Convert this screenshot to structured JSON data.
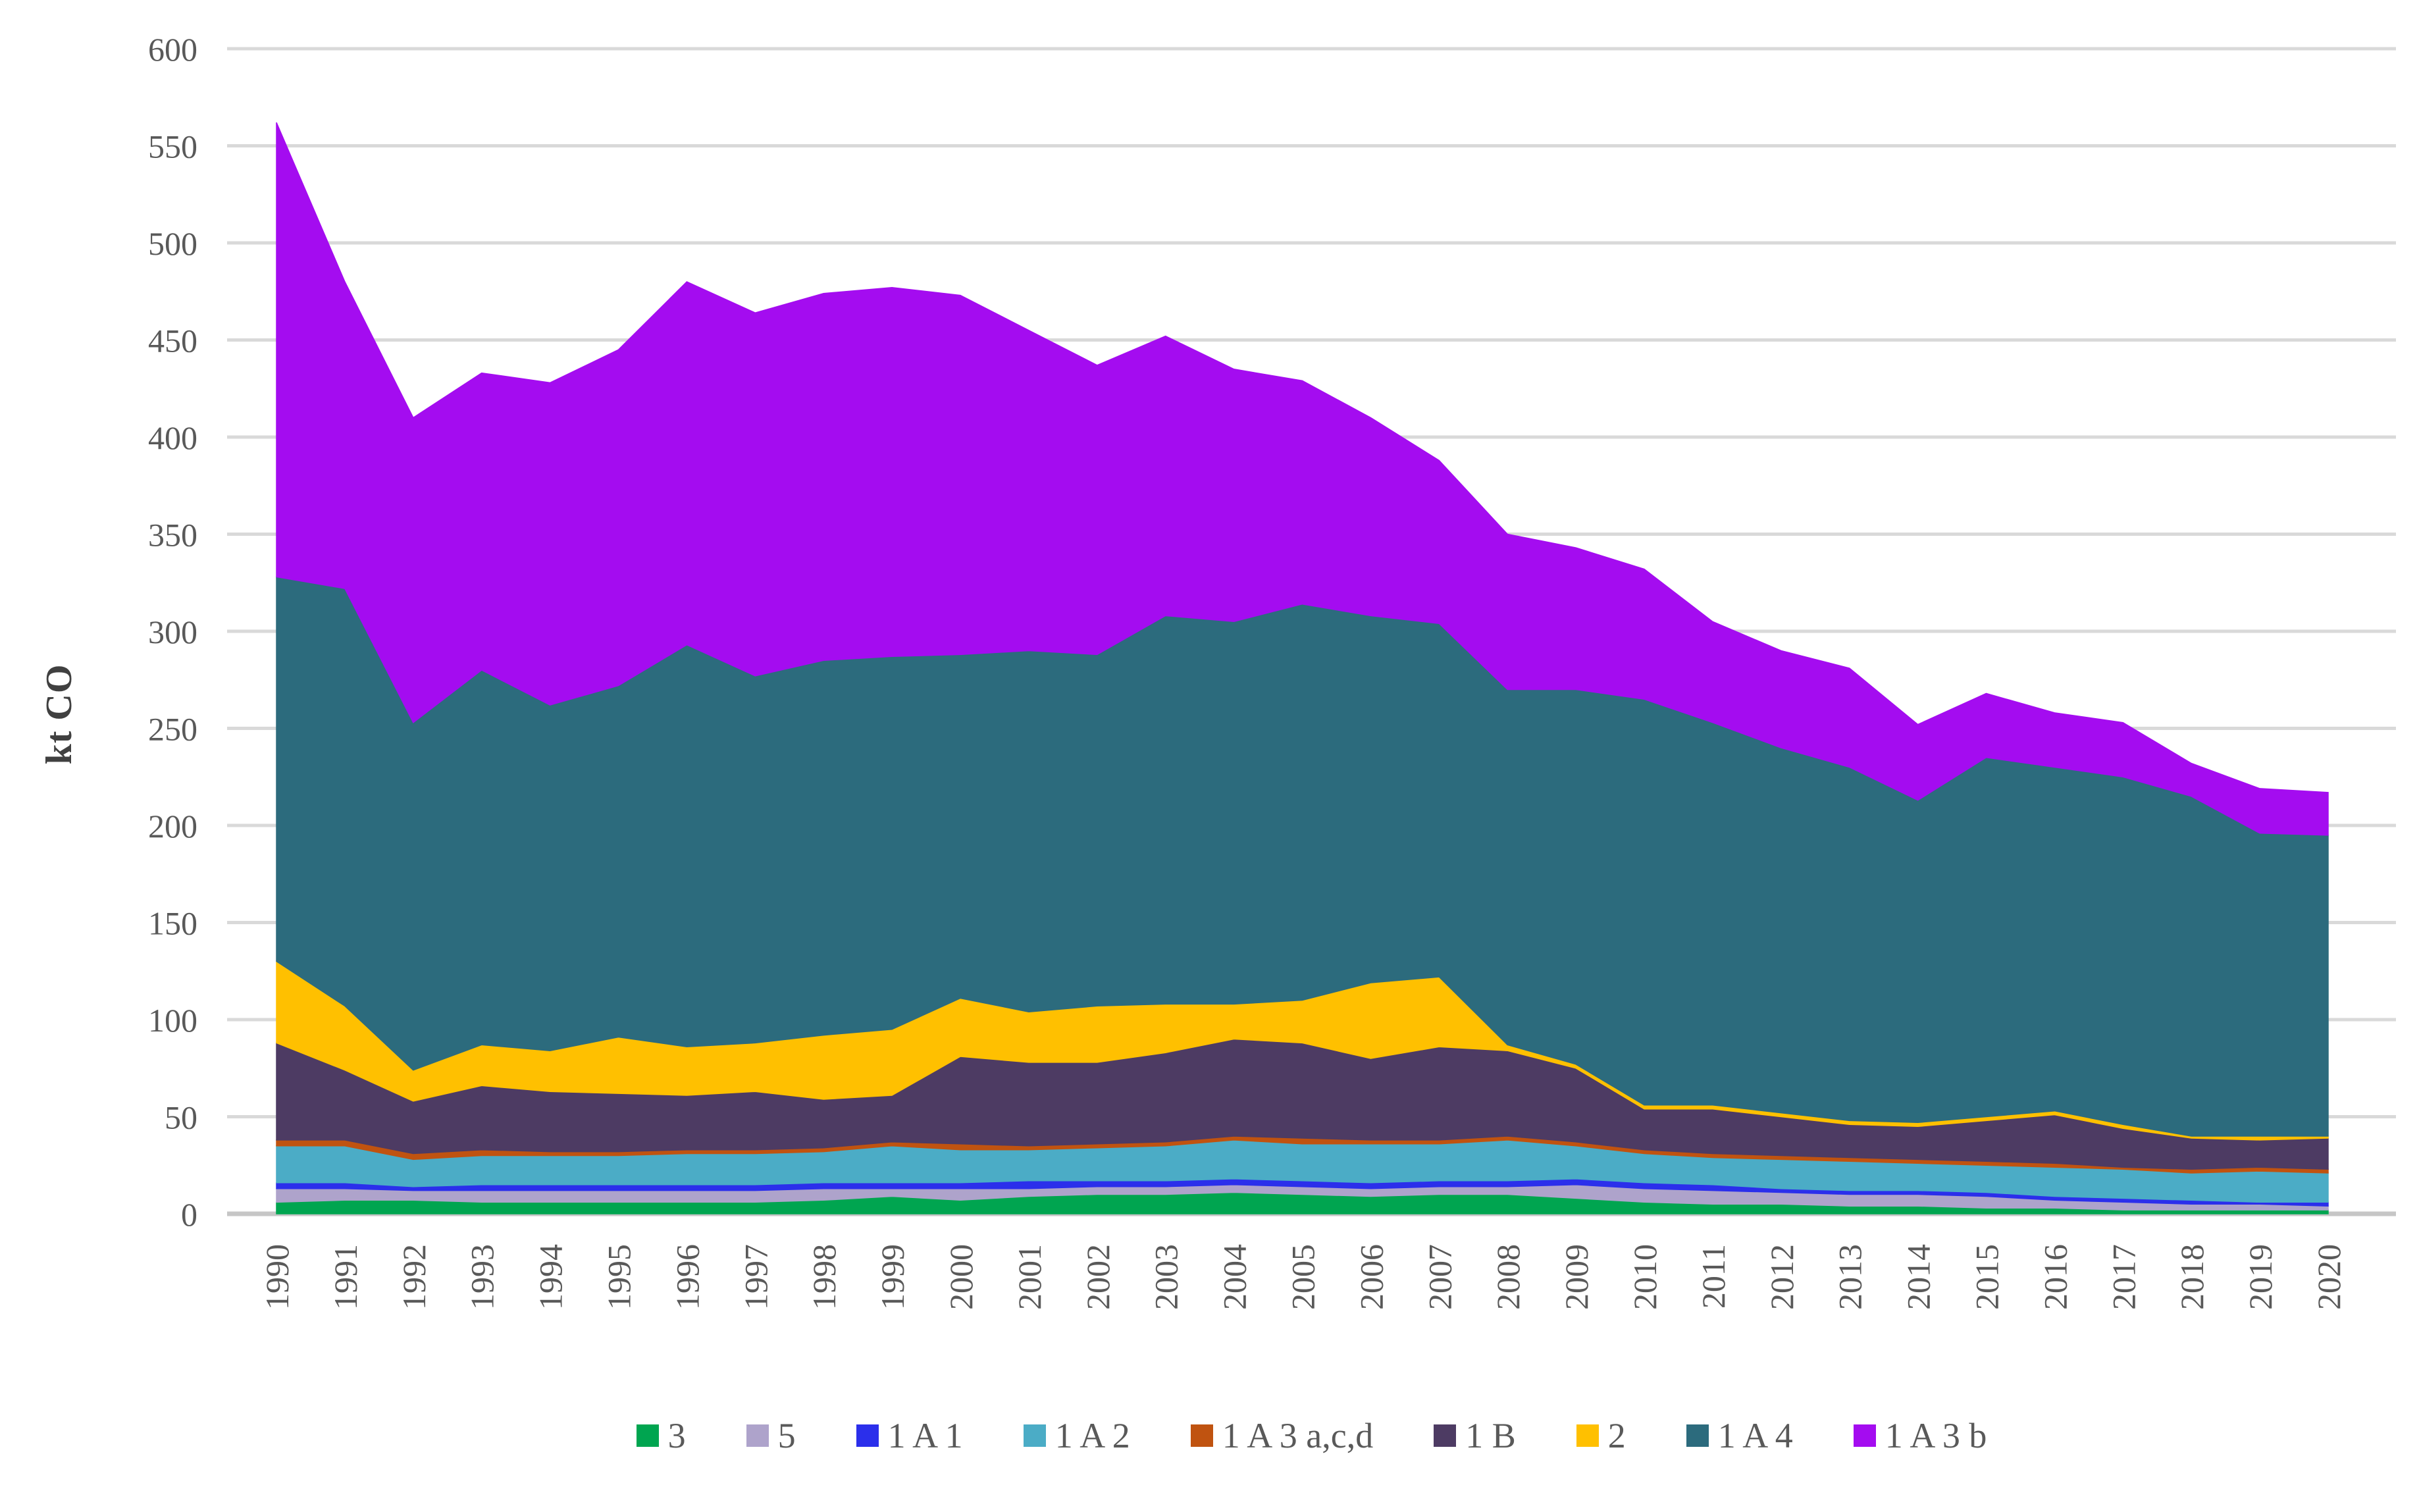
{
  "axes": {
    "y_title": "kt CO",
    "yticks": [
      0,
      50,
      100,
      150,
      200,
      250,
      300,
      350,
      400,
      450,
      500,
      550,
      600
    ],
    "grid_color": "#D9D9D9",
    "axis_line_color": "#C6C6C6",
    "text_color": "#595959"
  },
  "chart_data": {
    "type": "area",
    "stacked": true,
    "title": "",
    "xlabel": "",
    "ylabel": "kt CO",
    "ylim": [
      0,
      600
    ],
    "ytick_step": 50,
    "grid": true,
    "legend_position": "bottom",
    "x": [
      1990,
      1991,
      1992,
      1993,
      1994,
      1995,
      1996,
      1997,
      1998,
      1999,
      2000,
      2001,
      2002,
      2003,
      2004,
      2005,
      2006,
      2007,
      2008,
      2009,
      2010,
      2011,
      2012,
      2013,
      2014,
      2015,
      2016,
      2017,
      2018,
      2019,
      2020
    ],
    "series": [
      {
        "name": "3",
        "color": "#00A550",
        "values": [
          6,
          7,
          7,
          6,
          6,
          6,
          6,
          6,
          7,
          9,
          7,
          9,
          10,
          10,
          11,
          10,
          9,
          10,
          10,
          8,
          6,
          5,
          5,
          4,
          4,
          3,
          3,
          2,
          2,
          2,
          2
        ]
      },
      {
        "name": "5",
        "color": "#AEA3CB",
        "values": [
          7,
          6,
          5,
          6,
          6,
          6,
          6,
          6,
          6,
          4,
          6,
          4,
          4,
          4,
          4,
          4,
          4,
          4,
          4,
          7,
          7,
          7,
          6,
          6,
          6,
          6,
          4,
          4,
          3,
          3,
          2
        ]
      },
      {
        "name": "1 A 1",
        "color": "#2B2FEB",
        "values": [
          3,
          3,
          2,
          3,
          3,
          3,
          3,
          3,
          3,
          3,
          3,
          4,
          3,
          3,
          3,
          3,
          3,
          3,
          3,
          3,
          3,
          3,
          2,
          2,
          2,
          2,
          2,
          2,
          2,
          1,
          2
        ]
      },
      {
        "name": "1 A 2",
        "color": "#4BACC6",
        "values": [
          19,
          19,
          14,
          15,
          15,
          15,
          16,
          16,
          16,
          19,
          17,
          16,
          17,
          18,
          20,
          19,
          20,
          19,
          21,
          17,
          15,
          14,
          15,
          15,
          14,
          14,
          15,
          15,
          14,
          16,
          15
        ]
      },
      {
        "name": "1 A 3 a,c,d",
        "color": "#C05310",
        "values": [
          3,
          3,
          3,
          3,
          2,
          2,
          2,
          2,
          2,
          2,
          3,
          2,
          2,
          2,
          2,
          3,
          2,
          2,
          2,
          2,
          2,
          2,
          2,
          2,
          2,
          2,
          2,
          1,
          2,
          2,
          2
        ]
      },
      {
        "name": "1 B",
        "color": "#4D3B63",
        "values": [
          50,
          36,
          27,
          33,
          31,
          30,
          28,
          30,
          25,
          24,
          45,
          43,
          42,
          46,
          50,
          49,
          42,
          48,
          44,
          38,
          21,
          23,
          20,
          17,
          17,
          21,
          25,
          20,
          16,
          14,
          16
        ]
      },
      {
        "name": "2",
        "color": "#FFC000",
        "values": [
          42,
          33,
          16,
          21,
          21,
          29,
          25,
          25,
          33,
          34,
          30,
          26,
          29,
          25,
          18,
          22,
          39,
          36,
          3,
          2,
          2,
          2,
          2,
          2,
          2,
          2,
          2,
          2,
          1,
          2,
          1
        ]
      },
      {
        "name": "1 A 4",
        "color": "#2C6B7D",
        "values": [
          198,
          215,
          179,
          193,
          178,
          181,
          207,
          189,
          193,
          192,
          177,
          186,
          181,
          200,
          197,
          204,
          189,
          182,
          183,
          193,
          209,
          197,
          188,
          182,
          166,
          185,
          177,
          179,
          175,
          156,
          155
        ]
      },
      {
        "name": "1 A 3 b",
        "color": "#A40CF0",
        "values": [
          234,
          158,
          157,
          153,
          166,
          173,
          187,
          187,
          189,
          190,
          185,
          165,
          149,
          144,
          130,
          115,
          102,
          84,
          80,
          73,
          67,
          52,
          50,
          51,
          39,
          33,
          28,
          28,
          17,
          23,
          22
        ]
      }
    ]
  }
}
